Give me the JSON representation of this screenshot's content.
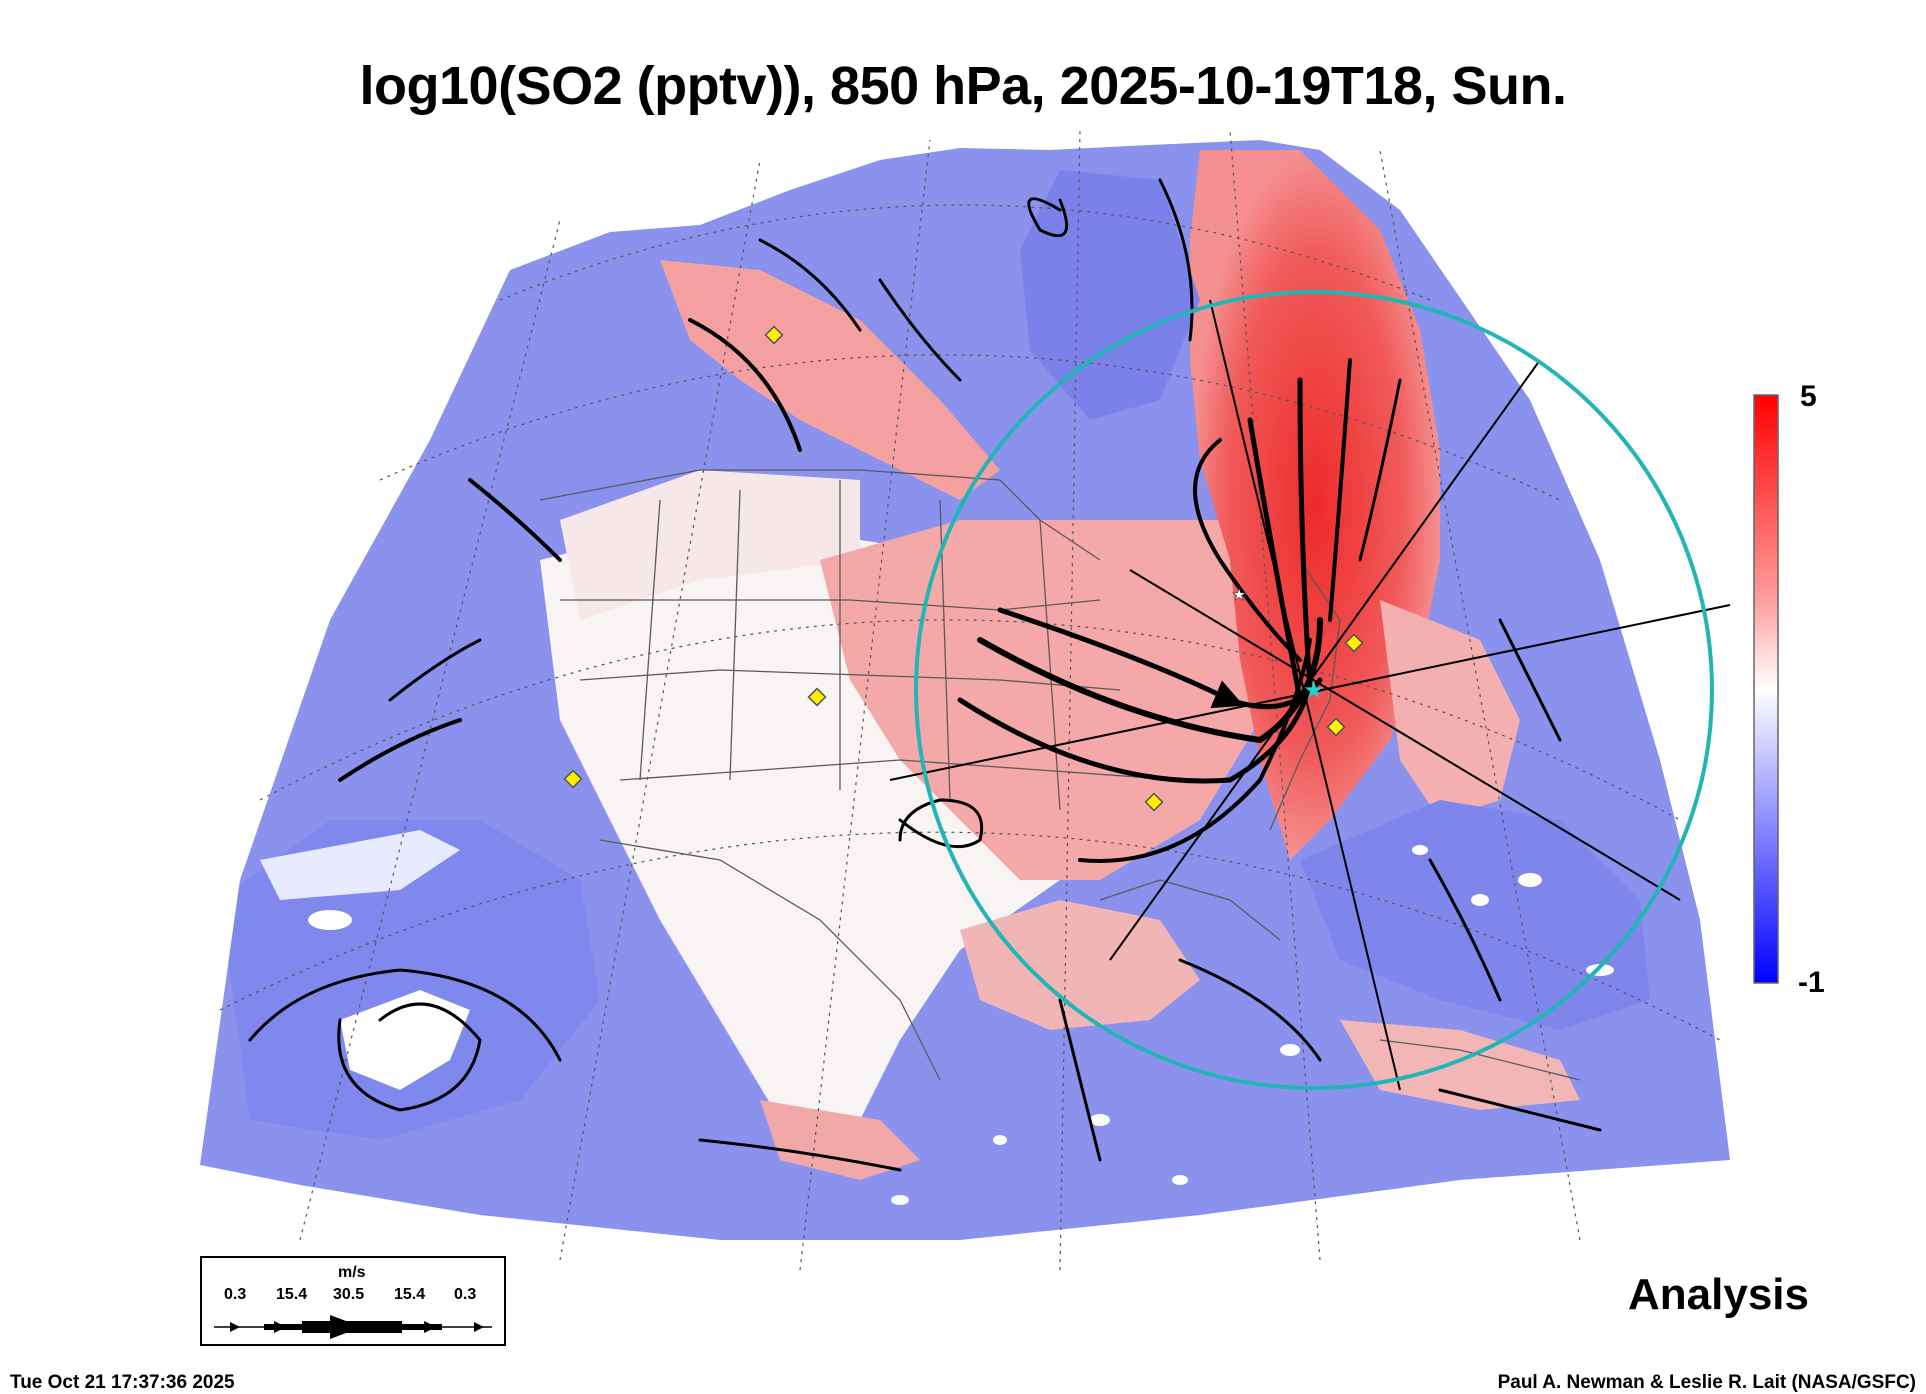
{
  "title": "log10(SO2 (pptv)), 850 hPa, 2025-10-19T18, Sun.",
  "colorbar": {
    "max_label": "5",
    "min_label": "-1",
    "colors": {
      "high": "#ff0000",
      "mid": "#ffffff",
      "low": "#0000ff"
    }
  },
  "legend": {
    "unit": "m/s",
    "speeds": [
      "0.3",
      "15.4",
      "30.5",
      "15.4",
      "0.3"
    ]
  },
  "analysis_label": "Analysis",
  "timestamp": "Tue Oct 21 17:37:36 2025",
  "credit": "Paul A. Newman & Leslie R. Lait (NASA/GSFC)",
  "map": {
    "colors": {
      "ring": "#22b5b5",
      "marker": "#ffee00",
      "state_lines": "#555555",
      "low_field": "#7a85ee",
      "high_field": "#ee5555"
    },
    "icons": [
      "yellow-diamond-marker",
      "cyan-star-marker",
      "white-star-marker"
    ]
  }
}
